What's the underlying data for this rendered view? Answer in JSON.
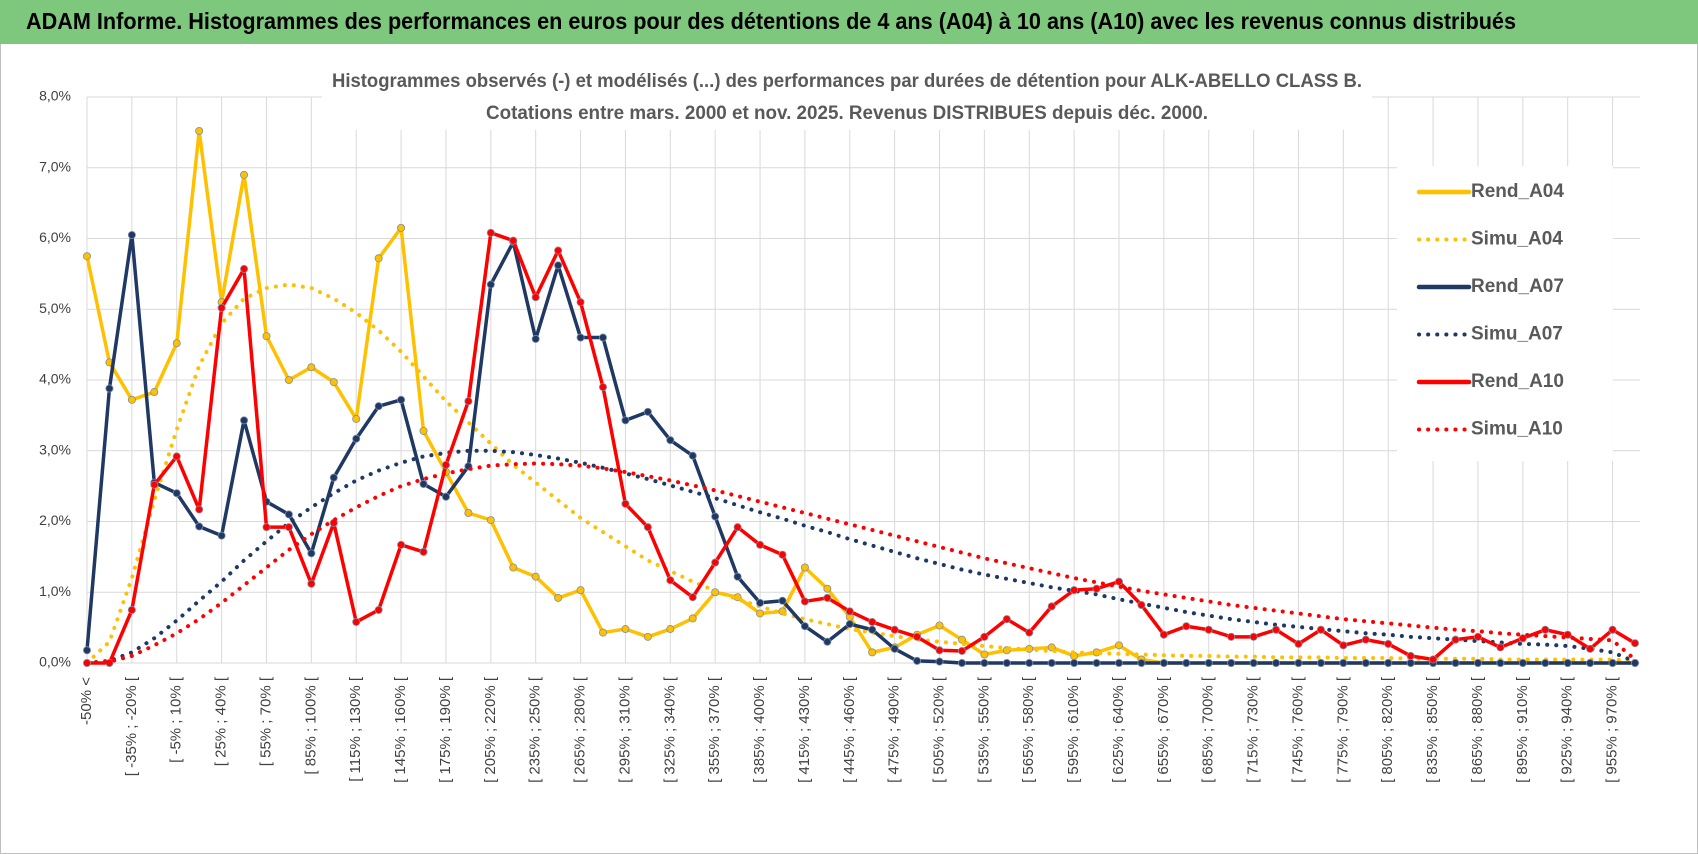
{
  "header": {
    "title": "ADAM Informe. Histogrammes des performances en euros pour des détentions de 4 ans (A04) à 10 ans (A10) avec les revenus connus distribués"
  },
  "chart_data": {
    "type": "line",
    "title": "Histogrammes observés (-) et modélisés (...) des performances par durées de détention pour ALK-ABELLO CLASS B.",
    "subtitle": "Cotations entre mars. 2000 et nov. 2025. Revenus DISTRIBUES depuis déc. 2000.",
    "categories": [
      "-50% <",
      null,
      "[ -35% ; -20% [",
      null,
      "[ -5% ; 10% [",
      null,
      "[ 25% ; 40% [",
      null,
      "[ 55% ; 70% [",
      null,
      "[ 85% ; 100% [",
      null,
      "[ 115% ; 130% [",
      null,
      "[ 145% ; 160% [",
      null,
      "[ 175% ; 190% [",
      null,
      "[ 205% ; 220% [",
      null,
      "[ 235% ; 250% [",
      null,
      "[ 265% ; 280% [",
      null,
      "[ 295% ; 310% [",
      null,
      "[ 325% ; 340% [",
      null,
      "[ 355% ; 370% [",
      null,
      "[ 385% ; 400% [",
      null,
      "[ 415% ; 430% [",
      null,
      "[ 445% ; 460% [",
      null,
      "[ 475% ; 490% [",
      null,
      "[ 505% ; 520% [",
      null,
      "[ 535% ; 550% [",
      null,
      "[ 565% ; 580% [",
      null,
      "[ 595% ; 610% [",
      null,
      "[ 625% ; 640% [",
      null,
      "[ 655% ; 670% [",
      null,
      "[ 685% ; 700% [",
      null,
      "[ 715% ; 730% [",
      null,
      "[ 745% ; 760% [",
      null,
      "[ 775% ; 790% [",
      null,
      "[ 805% ; 820% [",
      null,
      "[ 835% ; 850% [",
      null,
      "[ 865% ; 880% [",
      null,
      "[ 895% ; 910% [",
      null,
      "[ 925% ; 940% [",
      null,
      "[ 955% ; 970% [",
      null
    ],
    "ylim": [
      0,
      8
    ],
    "yticks": [
      {
        "value": 0,
        "label": "0,0%"
      },
      {
        "value": 1,
        "label": "1,0%"
      },
      {
        "value": 2,
        "label": "2,0%"
      },
      {
        "value": 3,
        "label": "3,0%"
      },
      {
        "value": 4,
        "label": "4,0%"
      },
      {
        "value": 5,
        "label": "5,0%"
      },
      {
        "value": 6,
        "label": "6,0%"
      },
      {
        "value": 7,
        "label": "7,0%"
      },
      {
        "value": 8,
        "label": "8,0%"
      }
    ],
    "grid": true,
    "legend": "right",
    "series": [
      {
        "name": "Rend_A04",
        "color": "#FFC000",
        "style": "solid",
        "values": [
          5.75,
          4.25,
          3.72,
          3.83,
          4.52,
          7.52,
          5.1,
          6.9,
          4.62,
          4.0,
          4.18,
          3.97,
          3.45,
          5.72,
          6.15,
          3.28,
          2.7,
          2.12,
          2.02,
          1.35,
          1.22,
          0.92,
          1.03,
          0.43,
          0.48,
          0.37,
          0.48,
          0.63,
          1.0,
          0.93,
          0.7,
          0.73,
          1.35,
          1.05,
          0.65,
          0.15,
          0.22,
          0.4,
          0.53,
          0.33,
          0.12,
          0.18,
          0.2,
          0.22,
          0.1,
          0.15,
          0.25,
          0.05,
          0,
          0,
          0,
          0,
          0,
          0,
          0,
          0,
          0,
          0,
          0,
          0,
          0,
          0,
          0,
          0,
          0,
          0,
          0,
          0,
          0,
          0
        ]
      },
      {
        "name": "Simu_A04",
        "color": "#FFC000",
        "style": "dotted",
        "values": [
          0,
          0.3,
          1.2,
          2.3,
          3.3,
          4.2,
          4.8,
          5.15,
          5.3,
          5.35,
          5.3,
          5.15,
          4.95,
          4.7,
          4.4,
          4.05,
          3.7,
          3.4,
          3.1,
          2.8,
          2.55,
          2.3,
          2.05,
          1.85,
          1.65,
          1.45,
          1.3,
          1.15,
          1.02,
          0.9,
          0.8,
          0.7,
          0.62,
          0.55,
          0.48,
          0.43,
          0.38,
          0.33,
          0.3,
          0.27,
          0.24,
          0.21,
          0.19,
          0.17,
          0.15,
          0.14,
          0.13,
          0.12,
          0.11,
          0.1,
          0.1,
          0.09,
          0.09,
          0.08,
          0.08,
          0.08,
          0.07,
          0.07,
          0.07,
          0.06,
          0.06,
          0.06,
          0.06,
          0.05,
          0.05,
          0.05,
          0.05,
          0.05,
          0.05,
          0.02
        ]
      },
      {
        "name": "Rend_A07",
        "color": "#1F3864",
        "style": "solid",
        "values": [
          0.18,
          3.88,
          6.05,
          2.55,
          2.4,
          1.93,
          1.8,
          3.43,
          2.28,
          2.1,
          1.55,
          2.62,
          3.17,
          3.63,
          3.72,
          2.53,
          2.35,
          2.78,
          5.35,
          5.95,
          4.58,
          5.62,
          4.6,
          4.6,
          3.43,
          3.55,
          3.15,
          2.93,
          2.07,
          1.22,
          0.85,
          0.88,
          0.52,
          0.3,
          0.55,
          0.47,
          0.2,
          0.03,
          0.02,
          0,
          0,
          0,
          0,
          0,
          0,
          0,
          0,
          0,
          0,
          0,
          0,
          0,
          0,
          0,
          0,
          0,
          0,
          0,
          0,
          0,
          0,
          0,
          0,
          0,
          0,
          0,
          0,
          0,
          0,
          0
        ]
      },
      {
        "name": "Simu_A07",
        "color": "#1F3864",
        "style": "dotted",
        "values": [
          0,
          0.03,
          0.15,
          0.35,
          0.6,
          0.88,
          1.15,
          1.45,
          1.72,
          1.98,
          2.2,
          2.4,
          2.58,
          2.72,
          2.83,
          2.92,
          2.97,
          3.0,
          3.0,
          2.98,
          2.94,
          2.89,
          2.83,
          2.76,
          2.68,
          2.6,
          2.51,
          2.42,
          2.33,
          2.23,
          2.13,
          2.04,
          1.94,
          1.85,
          1.75,
          1.66,
          1.57,
          1.48,
          1.4,
          1.32,
          1.25,
          1.19,
          1.13,
          1.07,
          1.02,
          0.97,
          0.9,
          0.84,
          0.78,
          0.72,
          0.67,
          0.62,
          0.58,
          0.54,
          0.51,
          0.48,
          0.45,
          0.42,
          0.4,
          0.37,
          0.35,
          0.33,
          0.31,
          0.29,
          0.27,
          0.26,
          0.24,
          0.2,
          0.15,
          0.02
        ]
      },
      {
        "name": "Rend_A10",
        "color": "#FF0000",
        "style": "solid",
        "values": [
          0,
          0,
          0.75,
          2.52,
          2.92,
          2.17,
          5.02,
          5.57,
          1.92,
          1.92,
          1.12,
          1.98,
          0.58,
          0.75,
          1.67,
          1.57,
          2.8,
          3.7,
          6.08,
          5.97,
          5.17,
          5.83,
          5.1,
          3.9,
          2.25,
          1.92,
          1.17,
          0.93,
          1.42,
          1.92,
          1.67,
          1.53,
          0.87,
          0.92,
          0.73,
          0.58,
          0.47,
          0.37,
          0.18,
          0.17,
          0.37,
          0.62,
          0.43,
          0.8,
          1.03,
          1.05,
          1.15,
          0.82,
          0.4,
          0.52,
          0.47,
          0.37,
          0.37,
          0.47,
          0.27,
          0.47,
          0.25,
          0.33,
          0.27,
          0.1,
          0.05,
          0.33,
          0.37,
          0.22,
          0.35,
          0.47,
          0.4,
          0.2,
          0.47,
          0.28
        ]
      },
      {
        "name": "Simu_A10",
        "color": "#FF0000",
        "style": "dotted",
        "values": [
          0,
          0.02,
          0.1,
          0.25,
          0.42,
          0.62,
          0.85,
          1.1,
          1.35,
          1.6,
          1.82,
          2.02,
          2.2,
          2.36,
          2.5,
          2.6,
          2.68,
          2.74,
          2.79,
          2.81,
          2.82,
          2.81,
          2.79,
          2.75,
          2.7,
          2.64,
          2.58,
          2.51,
          2.44,
          2.36,
          2.28,
          2.2,
          2.12,
          2.04,
          1.96,
          1.88,
          1.8,
          1.72,
          1.64,
          1.56,
          1.48,
          1.41,
          1.34,
          1.27,
          1.2,
          1.14,
          1.08,
          1.02,
          0.97,
          0.92,
          0.87,
          0.82,
          0.78,
          0.74,
          0.7,
          0.66,
          0.62,
          0.59,
          0.56,
          0.53,
          0.5,
          0.47,
          0.45,
          0.42,
          0.4,
          0.38,
          0.36,
          0.34,
          0.32,
          0.05
        ]
      }
    ]
  }
}
